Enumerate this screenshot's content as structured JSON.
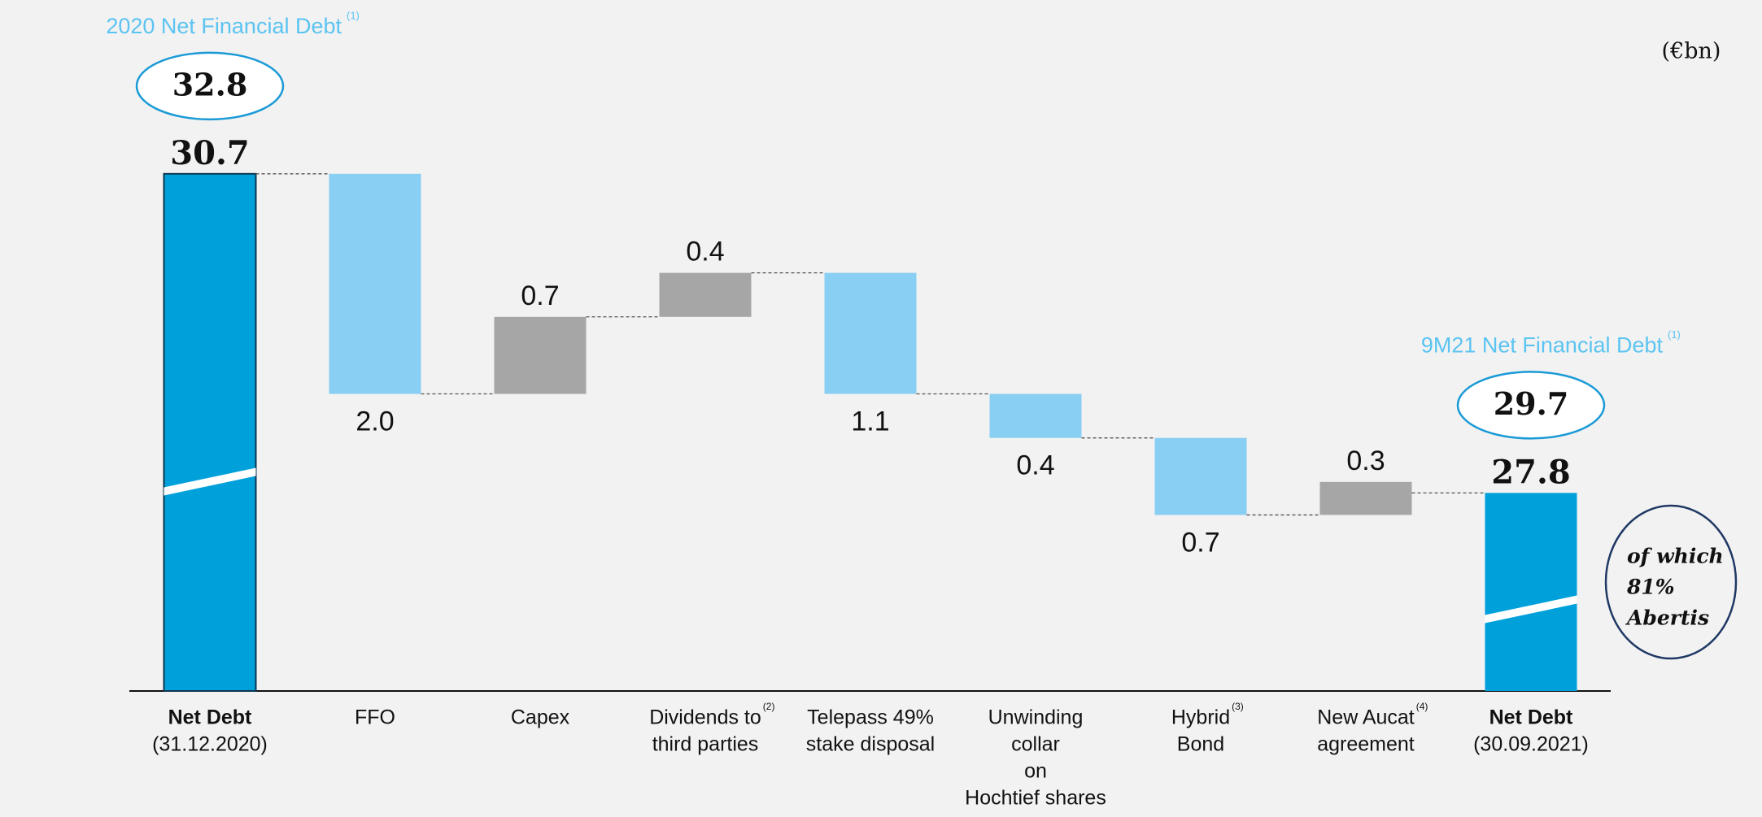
{
  "chart_data": {
    "type": "waterfall",
    "unit_label": "(€bn)",
    "categories": [
      [
        "Net Debt",
        "(31.12.2020)"
      ],
      [
        "FFO"
      ],
      [
        "Capex"
      ],
      [
        "Dividends to",
        "third parties"
      ],
      [
        "Telepass 49%",
        "stake disposal"
      ],
      [
        "Unwinding",
        "collar",
        "on",
        "Hochtief shares"
      ],
      [
        "Hybrid",
        "Bond"
      ],
      [
        "New Aucat",
        "agreement"
      ],
      [
        "Net Debt",
        "(30.09.2021)"
      ]
    ],
    "category_notes": [
      null,
      null,
      null,
      "(2)",
      null,
      null,
      "(3)",
      "(4)",
      null
    ],
    "measure": [
      "total",
      "decrease",
      "increase",
      "increase",
      "decrease",
      "decrease",
      "decrease",
      "increase",
      "total"
    ],
    "values": [
      30.7,
      -2.0,
      0.7,
      0.4,
      -1.1,
      -0.4,
      -0.7,
      0.3,
      27.8
    ],
    "value_labels": [
      "30.7",
      "2.0",
      "0.7",
      "0.4",
      "1.1",
      "0.4",
      "0.7",
      "0.3",
      "27.8"
    ],
    "colors": {
      "total": "#00a0da",
      "decrease": "#89cff3",
      "increase": "#a6a6a6"
    },
    "ylim": [
      26,
      31.6
    ],
    "axis_break": true,
    "annotations": [
      {
        "text": "2020 Net Financial Debt",
        "note": "(1)",
        "value": 32.8
      },
      {
        "text": "9M21 Net Financial Debt",
        "note": "(1)",
        "value": 29.7
      }
    ],
    "callout": [
      "of which",
      "81%",
      "Abertis"
    ]
  }
}
